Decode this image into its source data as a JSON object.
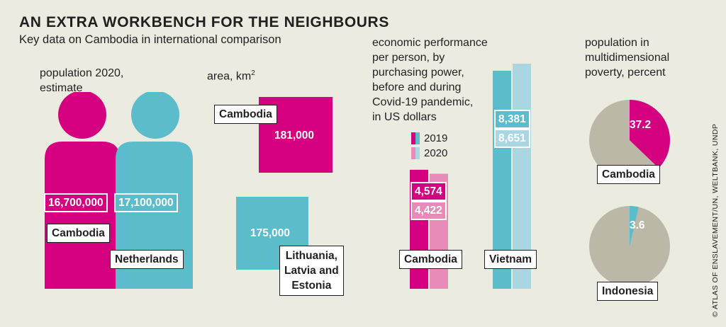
{
  "title": "AN EXTRA WORKBENCH FOR THE NEIGHBOURS",
  "subtitle": "Key data on Cambodia in international comparison",
  "credit": "© ATLAS OF ENSLAVEMENT/UN, WELTBANK, UNDP",
  "colors": {
    "magenta": "#d5007f",
    "teal": "#5bbccb",
    "pink_light": "#e98bb8",
    "teal_light": "#a9d6e0",
    "grey": "#bcb8a8",
    "background": "#ecebe0"
  },
  "population": {
    "caption_line1": "population 2020,",
    "caption_line2": "estimate",
    "cambodia": {
      "value": "16,700,000",
      "name": "Cambodia"
    },
    "netherlands": {
      "value": "17,100,000",
      "name": "Netherlands"
    }
  },
  "area": {
    "caption": "area, km",
    "caption_sup": "2",
    "cambodia": {
      "value": "181,000",
      "name": "Cambodia"
    },
    "baltics": {
      "value": "175,000",
      "name_line1": "Lithuania,",
      "name_line2": "Latvia and",
      "name_line3": "Estonia"
    }
  },
  "gdp": {
    "caption_lines": [
      "economic performance",
      "per person, by",
      "purchasing power,",
      "before and during",
      "Covid-19 pandemic,",
      "in US dollars"
    ],
    "legend_2019": "2019",
    "legend_2020": "2020",
    "cambodia": {
      "name": "Cambodia",
      "v2019": "4,574",
      "v2020": "4,422"
    },
    "vietnam": {
      "name": "Vietnam",
      "v2019": "8,381",
      "v2020": "8,651"
    }
  },
  "poverty": {
    "caption_lines": [
      "population in",
      "multidimensional",
      "poverty, percent"
    ],
    "cambodia": {
      "name": "Cambodia",
      "value": "37.2"
    },
    "indonesia": {
      "name": "Indonesia",
      "value": "3.6"
    }
  },
  "chart_data": [
    {
      "type": "bar",
      "title": "population 2020, estimate",
      "categories": [
        "Cambodia",
        "Netherlands"
      ],
      "values": [
        16700000,
        17100000
      ]
    },
    {
      "type": "bar",
      "title": "area, km2",
      "categories": [
        "Cambodia",
        "Lithuania, Latvia and Estonia"
      ],
      "values": [
        181000,
        175000
      ]
    },
    {
      "type": "bar",
      "title": "economic performance per person, by purchasing power, before and during Covid-19 pandemic, in US dollars",
      "categories": [
        "Cambodia",
        "Vietnam"
      ],
      "series": [
        {
          "name": "2019",
          "values": [
            4574,
            8381
          ]
        },
        {
          "name": "2020",
          "values": [
            4422,
            8651
          ]
        }
      ]
    },
    {
      "type": "pie",
      "title": "population in multidimensional poverty, percent",
      "categories": [
        "Cambodia",
        "Indonesia"
      ],
      "values": [
        37.2,
        3.6
      ]
    }
  ]
}
